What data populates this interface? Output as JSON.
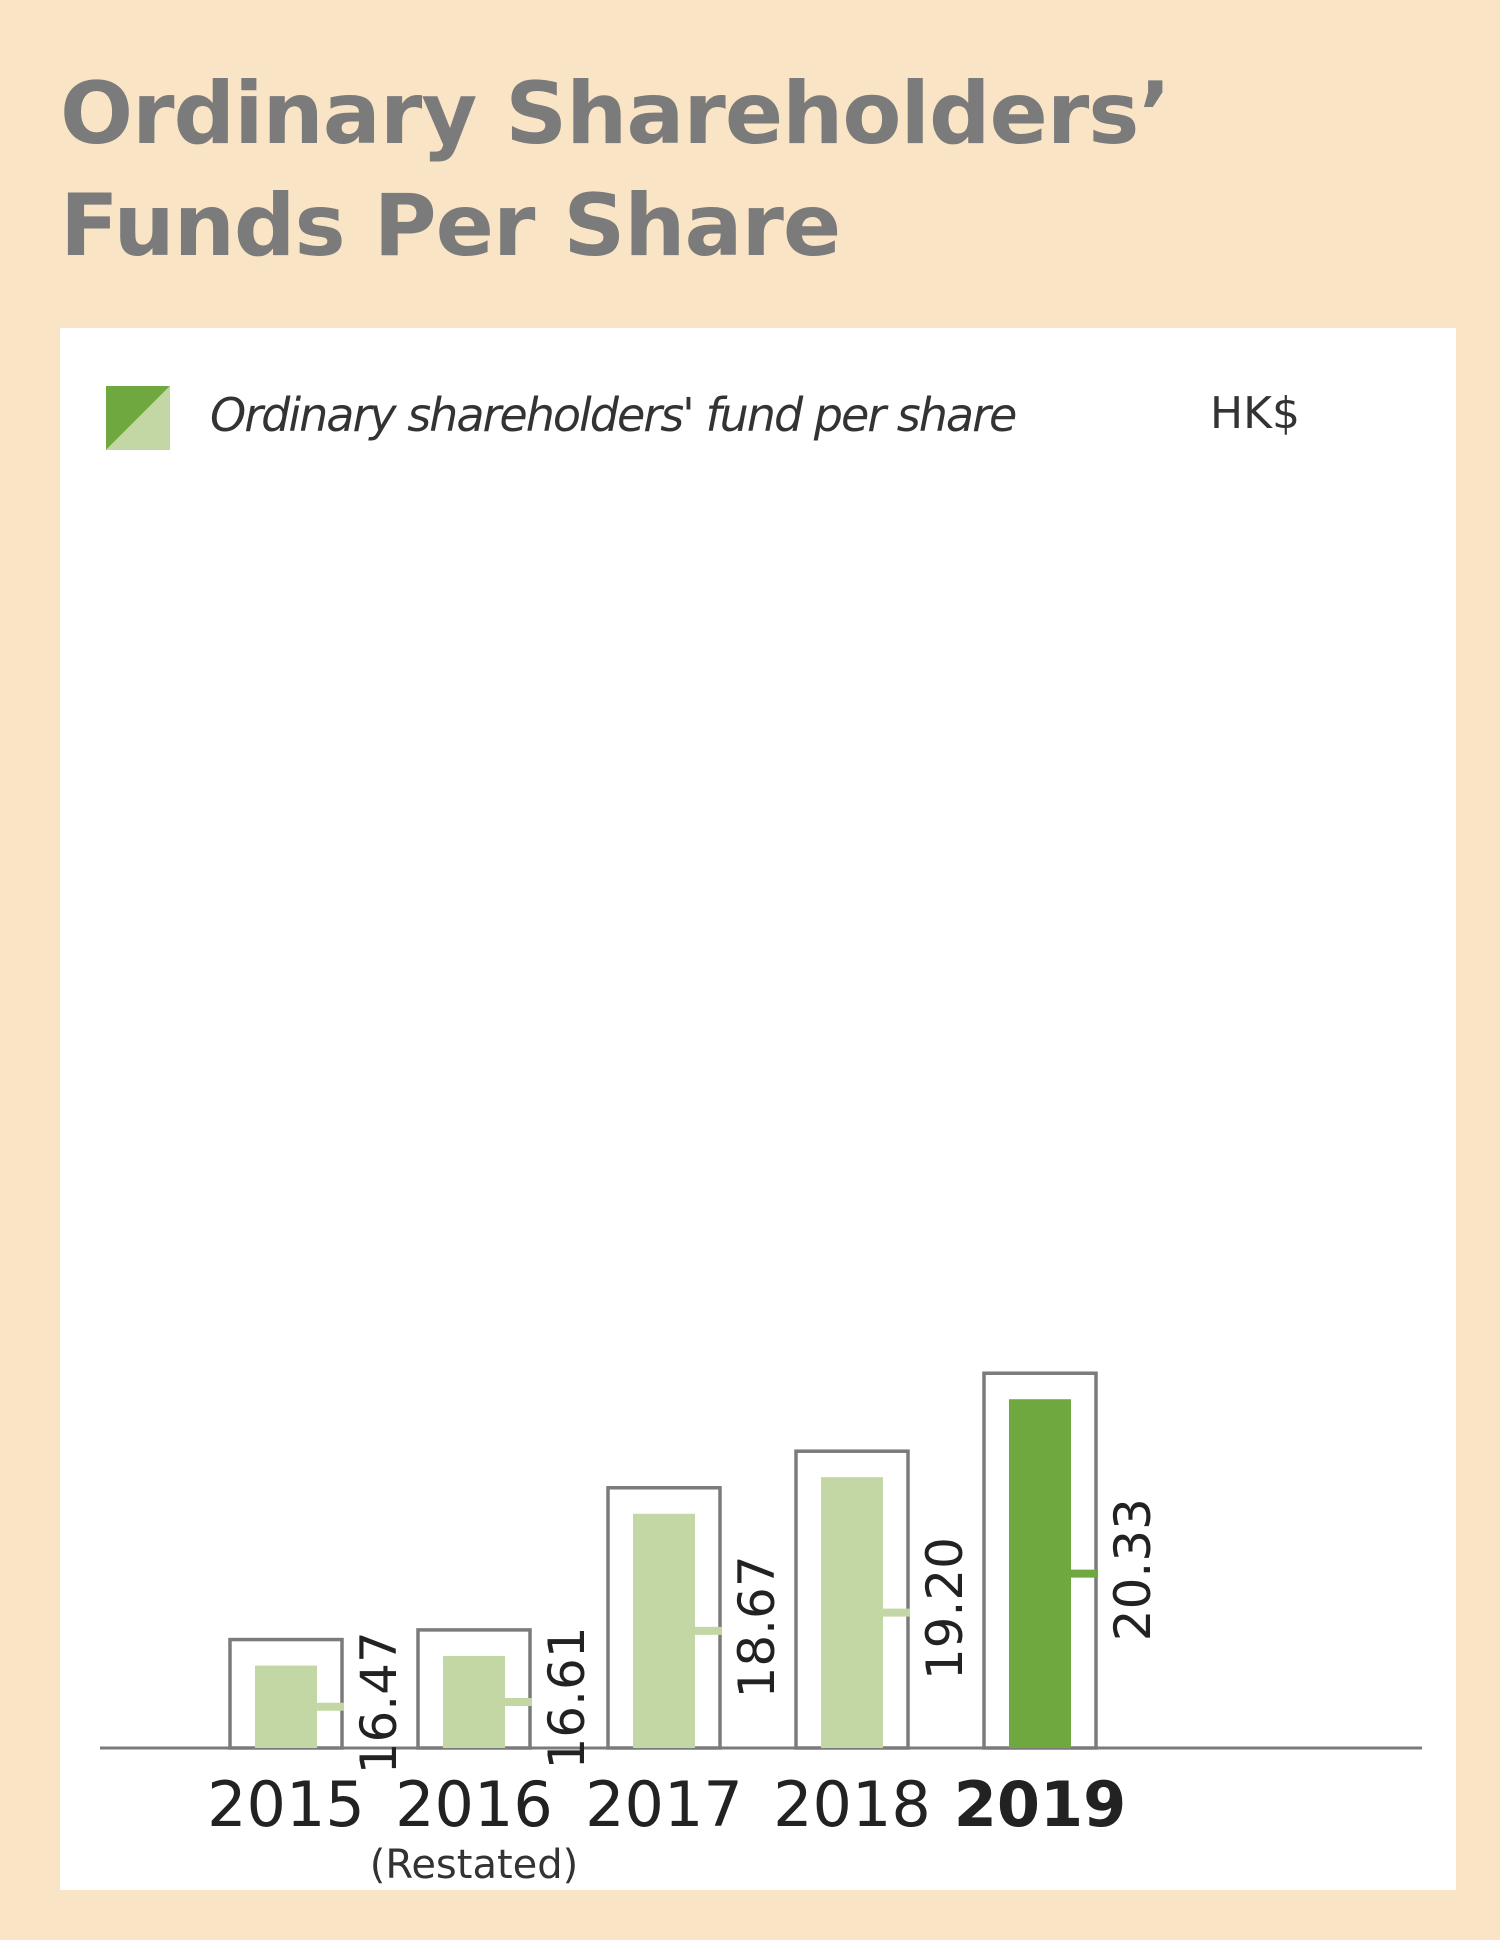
{
  "title": "Ordinary Shareholders’ Funds Per Share",
  "legend": {
    "label": "Ordinary shareholders' fund per share",
    "colors": {
      "light": "#c3d7a4",
      "dark": "#70a840"
    }
  },
  "unit": "HK$",
  "chart_data": {
    "type": "bar",
    "categories": [
      "2015",
      "2016",
      "2017",
      "2018",
      "2019"
    ],
    "category_notes": [
      "",
      "(Restated)",
      "",
      "",
      ""
    ],
    "highlight_category": "2019",
    "values": [
      16.47,
      16.61,
      18.67,
      19.2,
      20.33
    ],
    "value_labels": [
      "16.47",
      "16.61",
      "18.67",
      "19.20",
      "20.33"
    ],
    "title": "Ordinary Shareholders’ Funds Per Share",
    "xlabel": "",
    "ylabel": "HK$",
    "grid": false,
    "legend_position": "top-left",
    "colors": {
      "bar": "#c3d7a4",
      "highlight": "#70a840",
      "outline": "#7b7b7b",
      "axis": "#7b7b7b"
    }
  }
}
